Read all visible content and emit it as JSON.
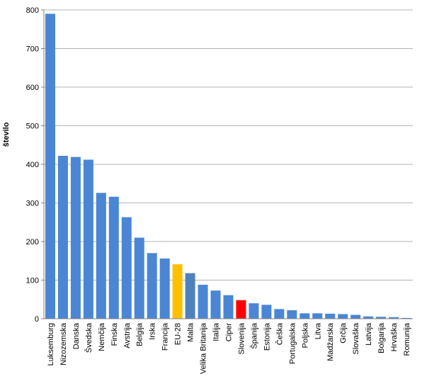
{
  "chart_data": {
    "type": "bar",
    "title": "",
    "xlabel": "",
    "ylabel": "število",
    "ylim": [
      0,
      800
    ],
    "yticks": [
      0,
      100,
      200,
      300,
      400,
      500,
      600,
      700,
      800
    ],
    "grid": true,
    "categories": [
      "Luksemburg",
      "Nizozemska",
      "Danska",
      "Švedska",
      "Nemčija",
      "Finska",
      "Avstrija",
      "Belgija",
      "Irska",
      "Francija",
      "EU-28",
      "Malta",
      "Velika Britanija",
      "Italija",
      "Ciper",
      "Slovenija",
      "Španija",
      "Estonija",
      "Češka",
      "Portugalska",
      "Poljska",
      "Litva",
      "Madžarska",
      "Grčija",
      "Slovaška",
      "Latvija",
      "Bolgarija",
      "Hrvaška",
      "Romunija"
    ],
    "values": [
      790,
      422,
      419,
      412,
      326,
      316,
      263,
      210,
      170,
      156,
      141,
      118,
      88,
      73,
      61,
      48,
      40,
      36,
      25,
      22,
      14,
      14,
      13,
      12,
      10,
      6,
      5,
      4,
      2
    ],
    "colors": {
      "default": "#4a86d4",
      "EU-28": "#ffc000",
      "Malta": "#4f81bd",
      "Slovenija": "#ff0000"
    },
    "grid_color": "#b3b3b3",
    "axis_color": "#808080"
  }
}
